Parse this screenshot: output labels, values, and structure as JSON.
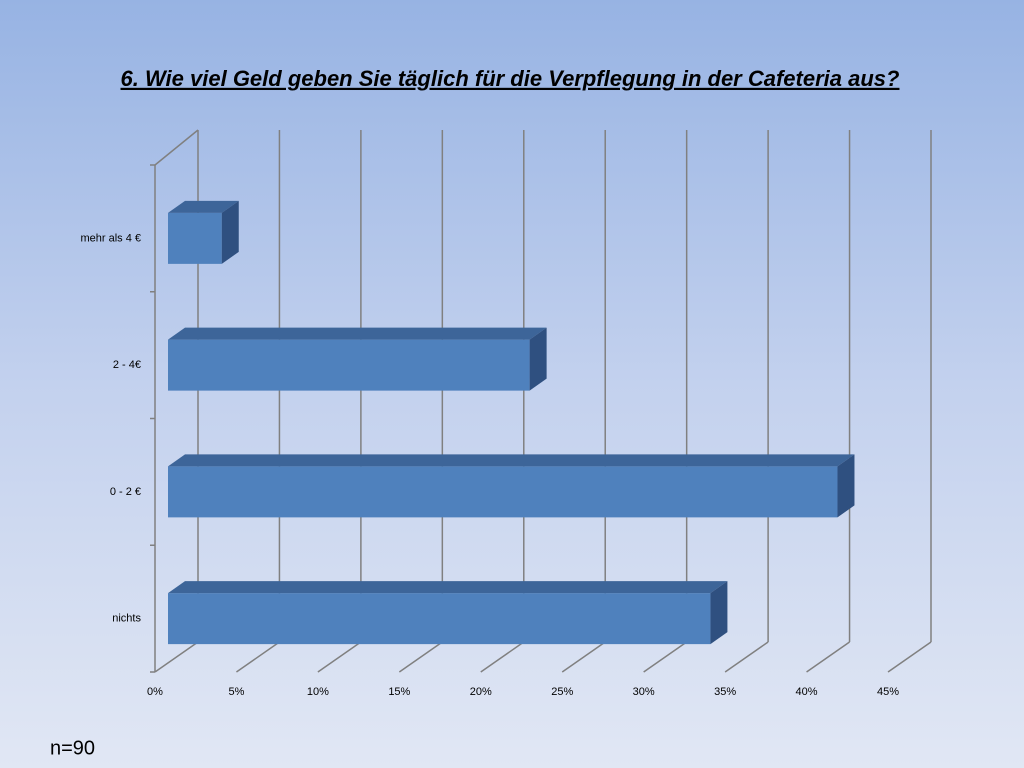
{
  "chart_data": {
    "type": "bar3d",
    "orientation": "horizontal",
    "title": "6. Wie viel Geld geben Sie täglich für die Verpflegung in der Cafeteria aus?",
    "categories": [
      "nichts",
      "0 - 2 €",
      "2 - 4€",
      "mehr als 4 €"
    ],
    "values": [
      33.3,
      41.1,
      22.2,
      3.3
    ],
    "color": "#4f81bd",
    "xlim": [
      0,
      45
    ],
    "xticks": [
      {
        "value": 0,
        "label": "0%"
      },
      {
        "value": 5,
        "label": "5%"
      },
      {
        "value": 10,
        "label": "10%"
      },
      {
        "value": 15,
        "label": "15%"
      },
      {
        "value": 20,
        "label": "20%"
      },
      {
        "value": 25,
        "label": "25%"
      },
      {
        "value": 30,
        "label": "30%"
      },
      {
        "value": 35,
        "label": "35%"
      },
      {
        "value": 40,
        "label": "40%"
      },
      {
        "value": 45,
        "label": "45%"
      }
    ],
    "grid": true,
    "note": "n=90"
  }
}
